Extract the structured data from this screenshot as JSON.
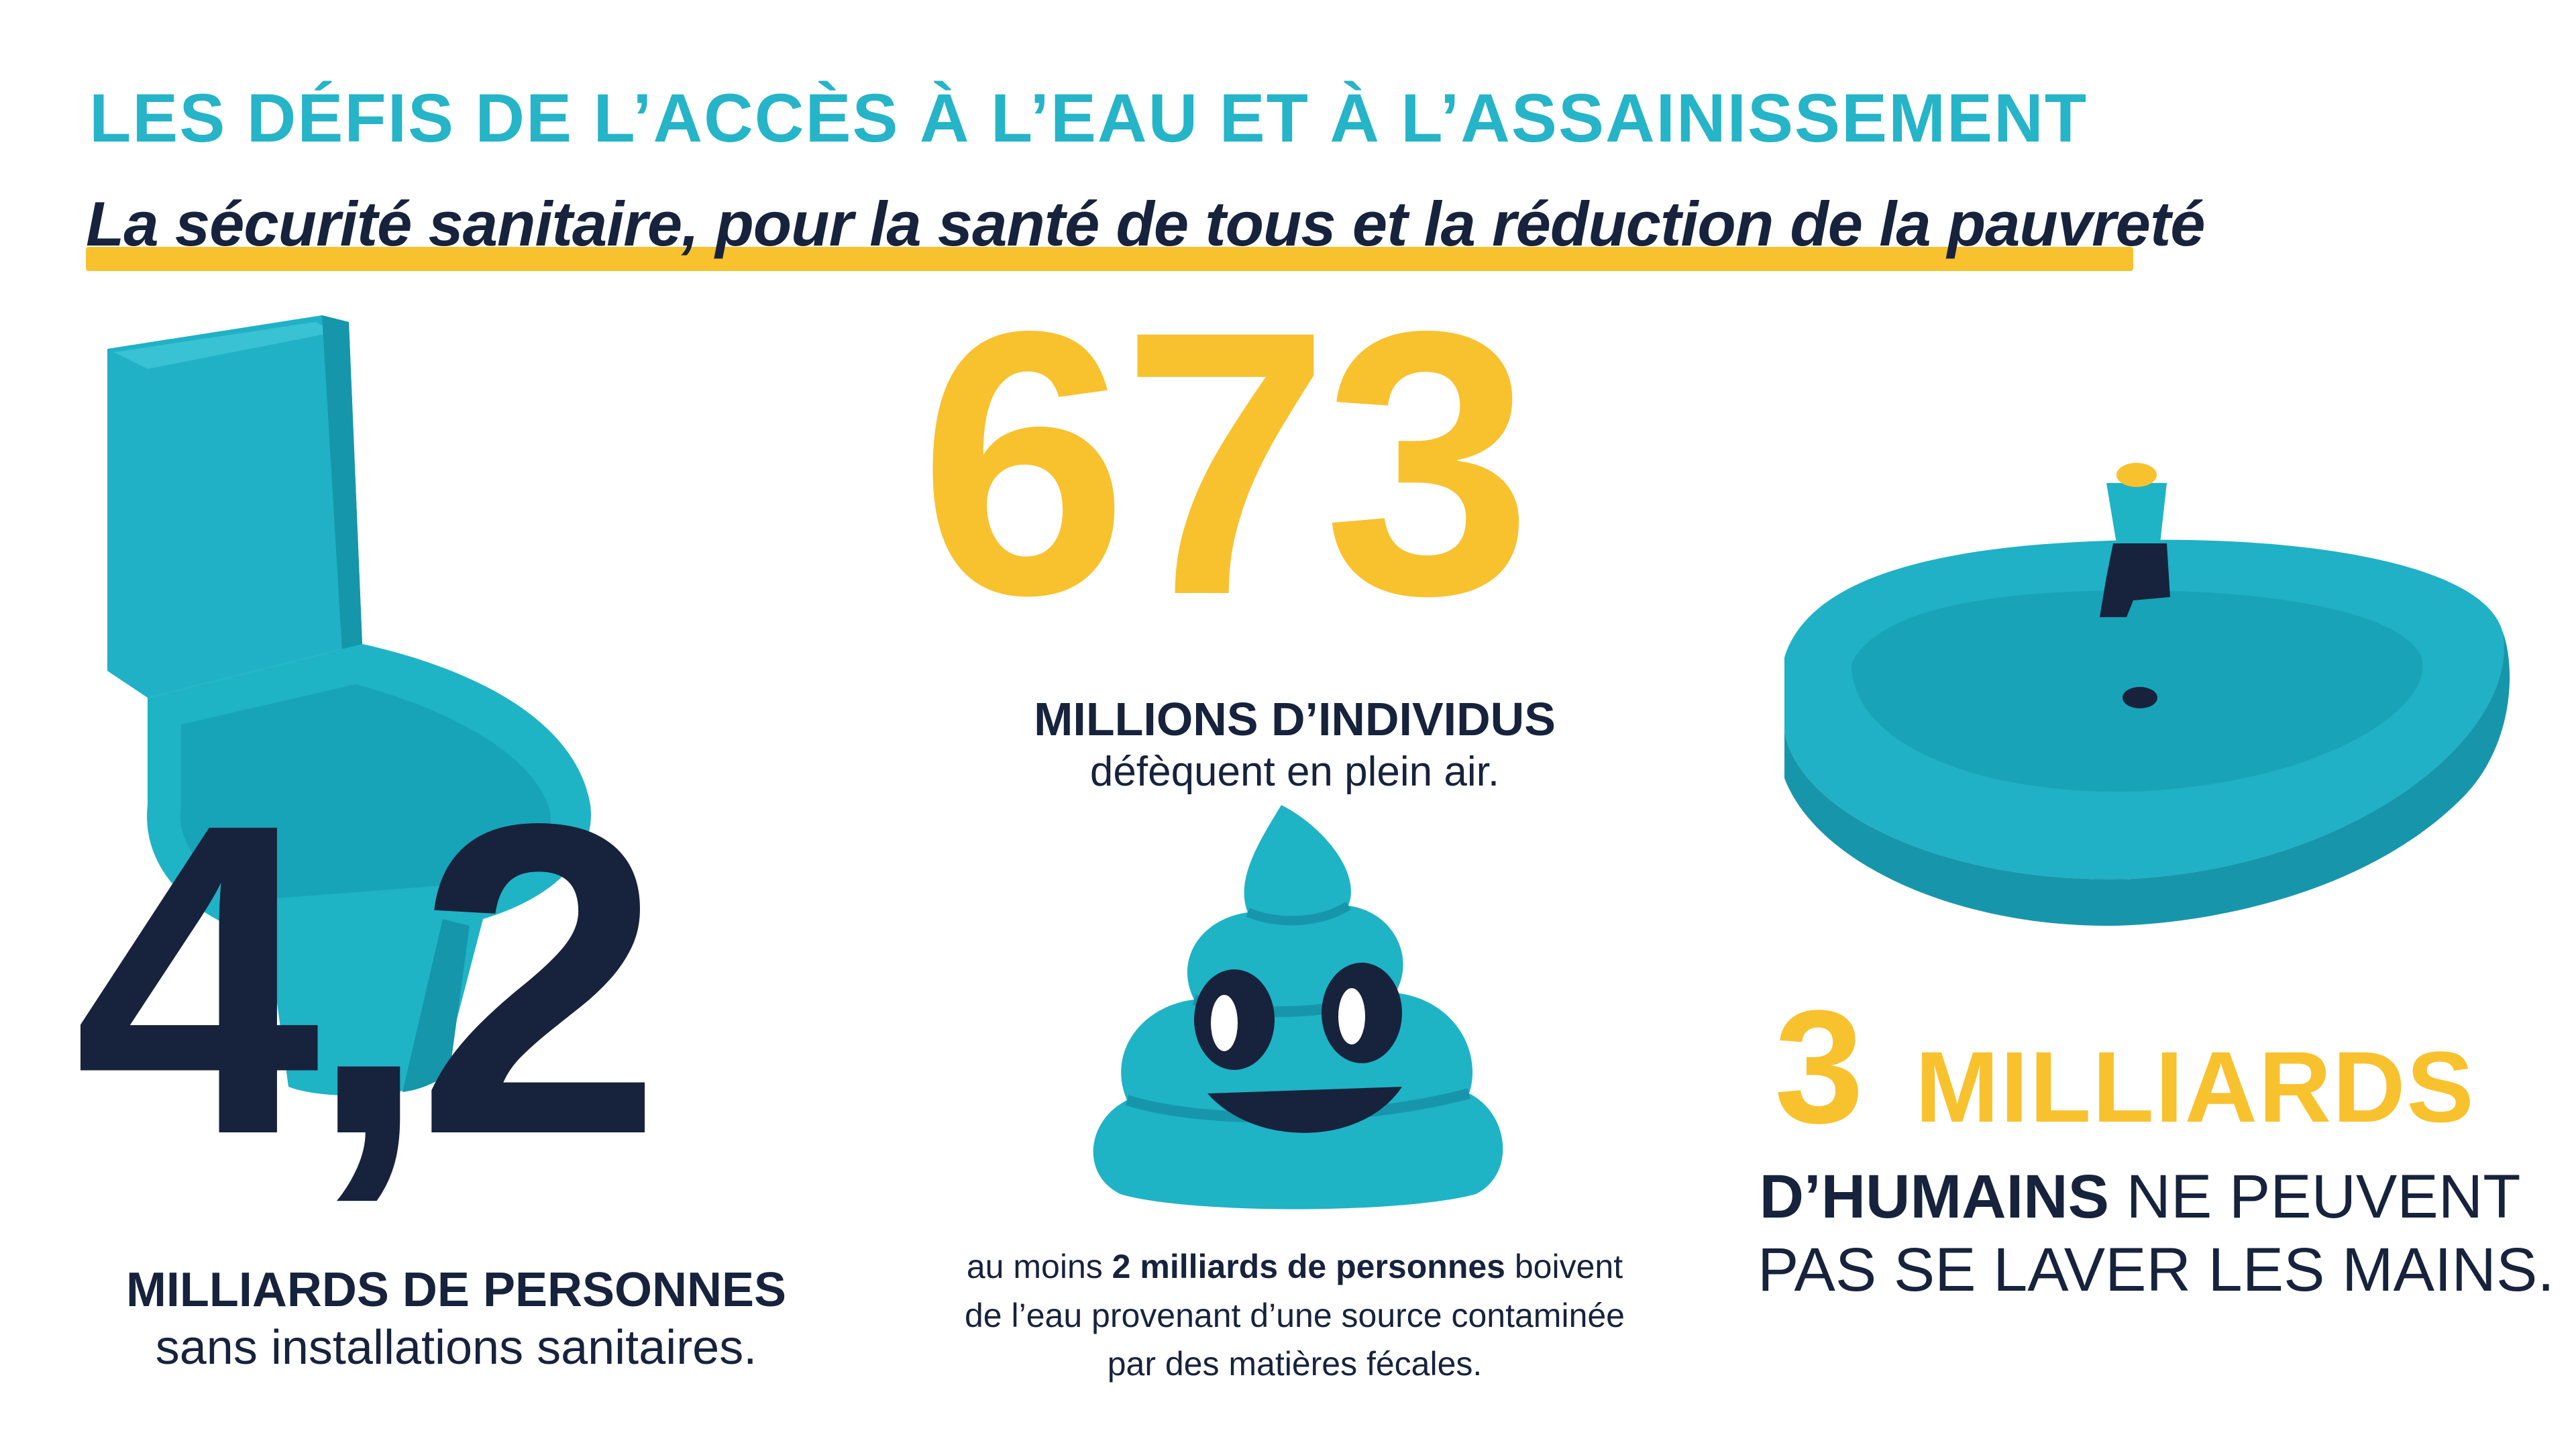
{
  "header": {
    "title": "LES DÉFIS DE L’ACCÈS À L’EAU ET À L’ASSAINISSEMENT",
    "subtitle": "La sécurité sanitaire, pour la santé de tous et la réduction de la pauvreté"
  },
  "colors": {
    "accent_teal": "#25b4c8",
    "accent_yellow": "#f8c12e",
    "navy": "#17233c"
  },
  "stat_673": {
    "number": "673",
    "label": "MILLIONS D’INDIVIDUS",
    "text": "défèquent en plein air."
  },
  "stat_42": {
    "number": "4,2",
    "label": "MILLIARDS DE PERSONNES",
    "text": "sans installations sanitaires."
  },
  "stat_2": {
    "prefix": "au moins ",
    "bold": "2 milliards de personnes",
    "suffix_line1": " boivent",
    "line2": "de l’eau provenant d’une source contaminée",
    "line3": "par des matières fécales."
  },
  "stat_3": {
    "number": "3",
    "unit": "MILLIARDS",
    "bold": "D’HUMAINS",
    "text_line1": " NE PEUVENT",
    "text_line2": "PAS SE LAVER LES MAINS."
  },
  "icons": {
    "toilet": "toilet-icon",
    "sink": "sink-icon",
    "poop": "poop-icon"
  }
}
